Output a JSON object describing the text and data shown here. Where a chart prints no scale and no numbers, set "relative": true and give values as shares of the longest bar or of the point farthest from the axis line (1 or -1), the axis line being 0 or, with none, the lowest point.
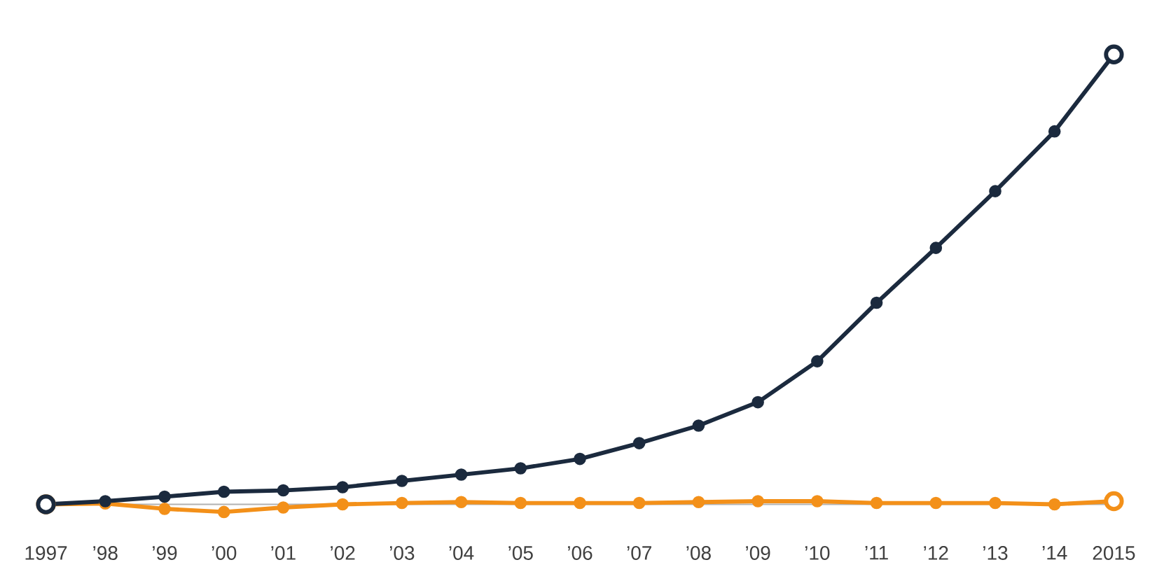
{
  "chart_data": {
    "type": "line",
    "relative": true,
    "marker": "circle",
    "categories": [
      "1997",
      "’98",
      "’99",
      "’00",
      "’01",
      "’02",
      "’03",
      "’04",
      "’05",
      "’06",
      "’07",
      "’08",
      "’09",
      "’10",
      "’11",
      "’12",
      "’13",
      "’14",
      "2015"
    ],
    "series": [
      {
        "color": "#1b2a3e",
        "values": [
          0,
          0.007,
          0.017,
          0.028,
          0.031,
          0.038,
          0.052,
          0.066,
          0.08,
          0.101,
          0.136,
          0.175,
          0.227,
          0.318,
          0.448,
          0.57,
          0.696,
          0.829,
          1
        ]
      },
      {
        "color": "#f39019",
        "values": [
          0,
          0.002,
          -0.01,
          -0.017,
          -0.007,
          0.0,
          0.003,
          0.005,
          0.003,
          0.003,
          0.003,
          0.005,
          0.007,
          0.007,
          0.003,
          0.003,
          0.003,
          0.0,
          0.007
        ]
      }
    ]
  }
}
